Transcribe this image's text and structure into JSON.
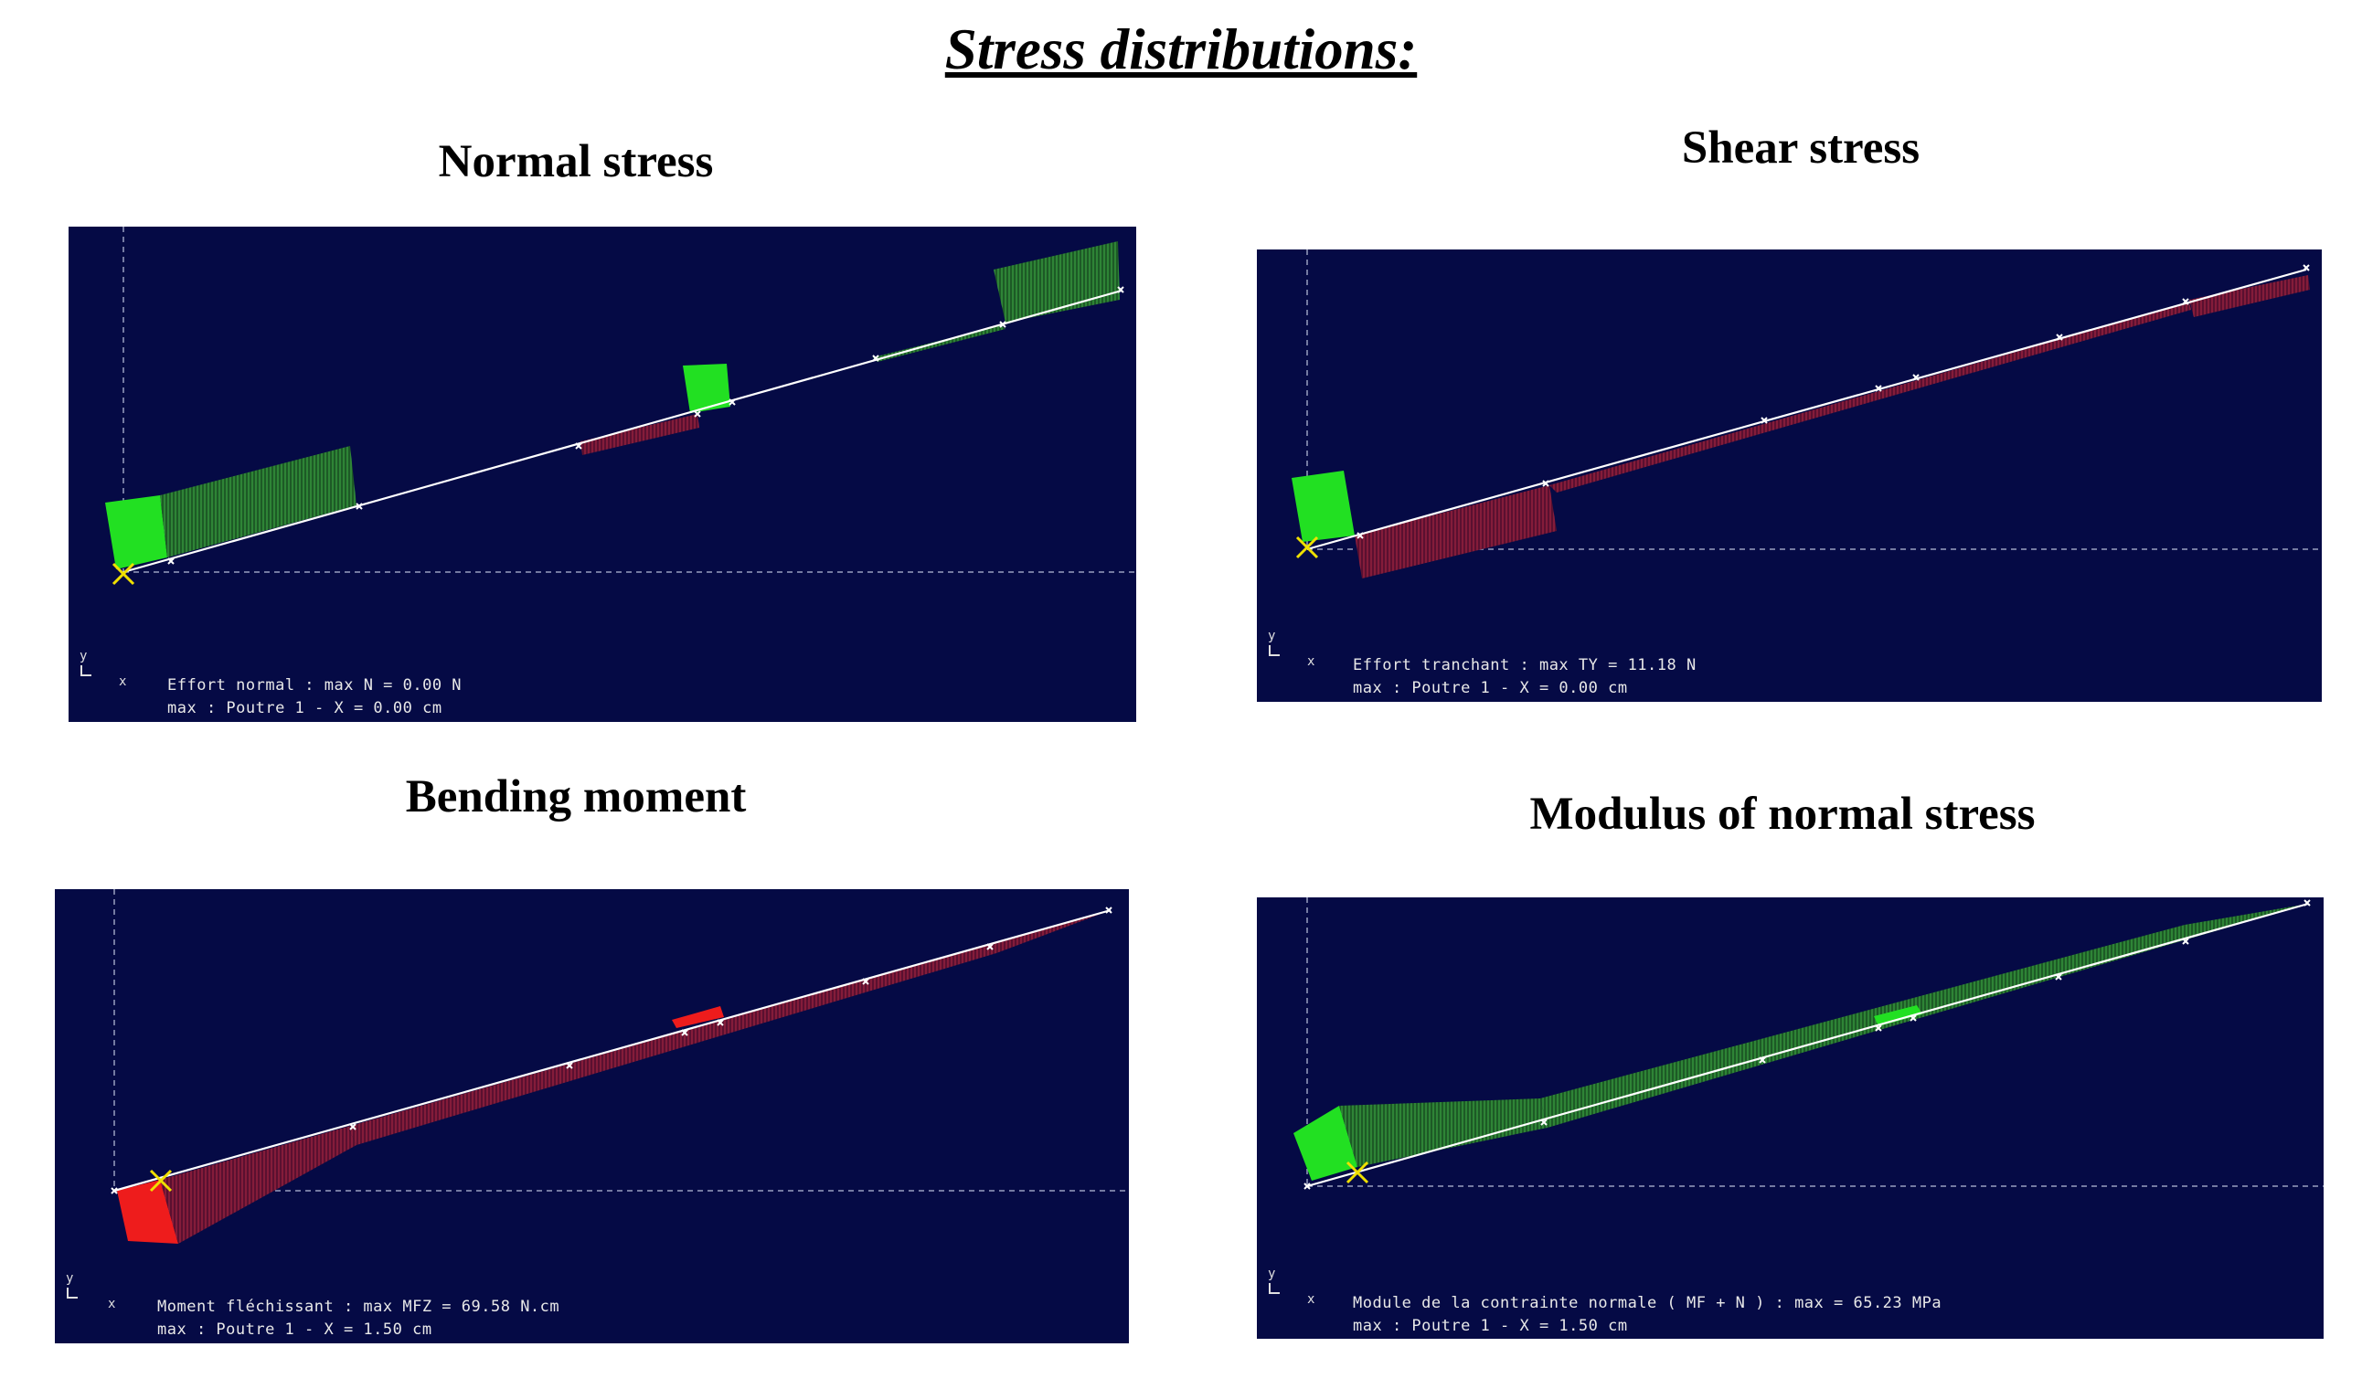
{
  "title": "Stress distributions:",
  "colors": {
    "panel_bg": "#050a45",
    "beam": "#ffffff",
    "positive_bright": "#22e022",
    "positive_dark": "#1f6a2a",
    "negative_bright": "#ee1c1c",
    "negative_dark": "#7a1a35",
    "support_marker": "#f0e000"
  },
  "panels": {
    "normal": {
      "title": "Normal stress",
      "axis_y": "y",
      "axis_x": "x",
      "caption_line1": "Effort normal : max N = 0.00 N",
      "caption_line2": "max : Poutre 1 - X = 0.00 cm"
    },
    "shear": {
      "title": "Shear stress",
      "axis_y": "y",
      "axis_x": "x",
      "caption_line1": "Effort tranchant : max TY = 11.18 N",
      "caption_line2": "max : Poutre 1 - X = 0.00 cm"
    },
    "bending": {
      "title": "Bending moment",
      "axis_y": "y",
      "axis_x": "x",
      "caption_line1": "Moment fléchissant : max MFZ = 69.58 N.cm",
      "caption_line2": "max : Poutre 1 - X = 1.50 cm"
    },
    "modulus": {
      "title": "Modulus of normal stress",
      "axis_y": "y",
      "axis_x": "x",
      "caption_line1": "Module de la contrainte normale ( MF + N ) : max = 65.23 MPa",
      "caption_line2": "max : Poutre 1 - X = 1.50 cm"
    }
  }
}
